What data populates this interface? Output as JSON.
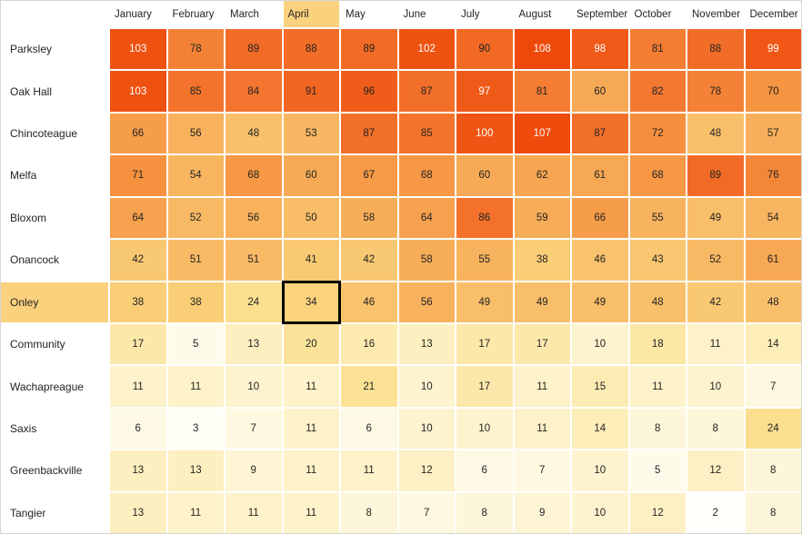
{
  "chart_data": {
    "type": "heatmap",
    "title": "",
    "columns": [
      "January",
      "February",
      "March",
      "April",
      "May",
      "June",
      "July",
      "August",
      "September",
      "October",
      "November",
      "December"
    ],
    "rows": [
      "Parksley",
      "Oak Hall",
      "Chincoteague",
      "Melfa",
      "Bloxom",
      "Onancock",
      "Onley",
      "Community",
      "Wachapreague",
      "Saxis",
      "Greenbackville",
      "Tangier"
    ],
    "values": [
      [
        103,
        78,
        89,
        88,
        89,
        102,
        90,
        108,
        98,
        81,
        88,
        99
      ],
      [
        103,
        85,
        84,
        91,
        96,
        87,
        97,
        81,
        60,
        82,
        78,
        70
      ],
      [
        66,
        56,
        48,
        53,
        87,
        85,
        100,
        107,
        87,
        72,
        48,
        57
      ],
      [
        71,
        54,
        68,
        60,
        67,
        68,
        60,
        62,
        61,
        68,
        89,
        76
      ],
      [
        64,
        52,
        56,
        50,
        58,
        64,
        86,
        59,
        66,
        55,
        49,
        54
      ],
      [
        42,
        51,
        51,
        41,
        42,
        58,
        55,
        38,
        46,
        43,
        52,
        61
      ],
      [
        38,
        38,
        24,
        34,
        46,
        56,
        49,
        49,
        49,
        48,
        42,
        48
      ],
      [
        17,
        5,
        13,
        20,
        16,
        13,
        17,
        17,
        10,
        18,
        11,
        14
      ],
      [
        11,
        11,
        10,
        11,
        21,
        10,
        17,
        11,
        15,
        11,
        10,
        7
      ],
      [
        6,
        3,
        7,
        11,
        6,
        10,
        10,
        11,
        14,
        8,
        8,
        24
      ],
      [
        13,
        13,
        9,
        11,
        11,
        12,
        6,
        7,
        10,
        5,
        12,
        8
      ],
      [
        13,
        11,
        11,
        11,
        8,
        7,
        8,
        9,
        10,
        12,
        2,
        8
      ]
    ],
    "value_range": [
      2,
      108
    ],
    "highlighted_column": "April",
    "highlighted_row": "Onley",
    "selected_cell": {
      "row": "Onley",
      "column": "April",
      "value": 34
    },
    "legend_position": "none",
    "grid": false,
    "colors": {
      "highlight_background": "#FAD17D",
      "cell_text_dark": "#252423",
      "cell_text_light": "#FFFFFF",
      "header_text": "#252423",
      "gap_background": "#FFFFFF",
      "selected_border": "#000000",
      "white_text_threshold": 97,
      "color_scale_stops": [
        [
          2,
          "#FFFFFC"
        ],
        [
          11,
          "#FDF2C9"
        ],
        [
          21,
          "#FBE295"
        ],
        [
          34,
          "#FAD37B"
        ],
        [
          48,
          "#F9C06B"
        ],
        [
          61,
          "#F7A854"
        ],
        [
          72,
          "#F58F3D"
        ],
        [
          84,
          "#F3752F"
        ],
        [
          96,
          "#F05C19"
        ],
        [
          108,
          "#EE490B"
        ]
      ]
    }
  }
}
